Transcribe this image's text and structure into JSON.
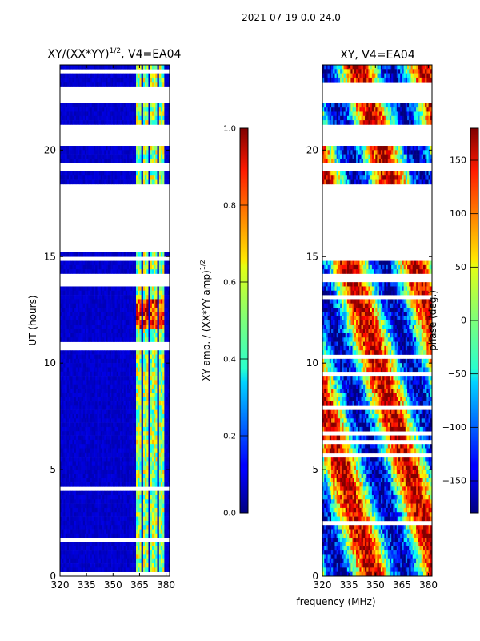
{
  "figure": {
    "suptitle": "2021-07-19 0.0-24.0",
    "xlabel_shared": "frequency (MHz)"
  },
  "chart_data": [
    {
      "type": "heatmap",
      "title_main": "XY/(XX*YY)",
      "title_sup": "1/2",
      "title_tail": ", V4=EA04",
      "ylabel": "UT (hours)",
      "xlim": [
        320,
        382
      ],
      "ylim": [
        0,
        24
      ],
      "xticks": [
        320,
        335,
        350,
        365,
        380
      ],
      "yticks": [
        0,
        5,
        10,
        15,
        20
      ],
      "colorbar": {
        "label_main": "XY amp. / (XX*YY amp)",
        "label_sup": "1/2",
        "range": [
          0.0,
          1.0
        ],
        "ticks": [
          "0.0",
          "0.2",
          "0.4",
          "0.6",
          "0.8",
          "1.0"
        ]
      },
      "flagged_hour_ranges": [
        [
          22.3,
          23.0
        ],
        [
          20.3,
          21.2
        ],
        [
          19.0,
          19.4
        ],
        [
          15.3,
          18.3
        ],
        [
          14.8,
          14.9
        ],
        [
          13.9,
          14.15
        ]
      ],
      "bright_frequency_bands_mhz": [
        [
          363,
          366
        ],
        [
          367,
          370
        ],
        [
          371,
          375
        ],
        [
          376,
          379
        ]
      ]
    },
    {
      "type": "heatmap",
      "title": "XY, V4=EA04",
      "xlim": [
        320,
        382
      ],
      "ylim": [
        0,
        24
      ],
      "xticks": [
        320,
        335,
        350,
        365,
        380
      ],
      "yticks": [
        0,
        5,
        10,
        15,
        20
      ],
      "colorbar": {
        "label": "phase (deg.)",
        "range": [
          -180,
          180
        ],
        "ticks": [
          "−150",
          "−100",
          "−50",
          "0",
          "50",
          "100",
          "150"
        ]
      },
      "flagged_hour_ranges": [
        [
          22.3,
          23.0
        ],
        [
          20.3,
          21.2
        ],
        [
          19.0,
          19.4
        ],
        [
          15.3,
          18.3
        ],
        [
          14.8,
          14.9
        ],
        [
          13.9,
          14.15
        ]
      ]
    }
  ]
}
